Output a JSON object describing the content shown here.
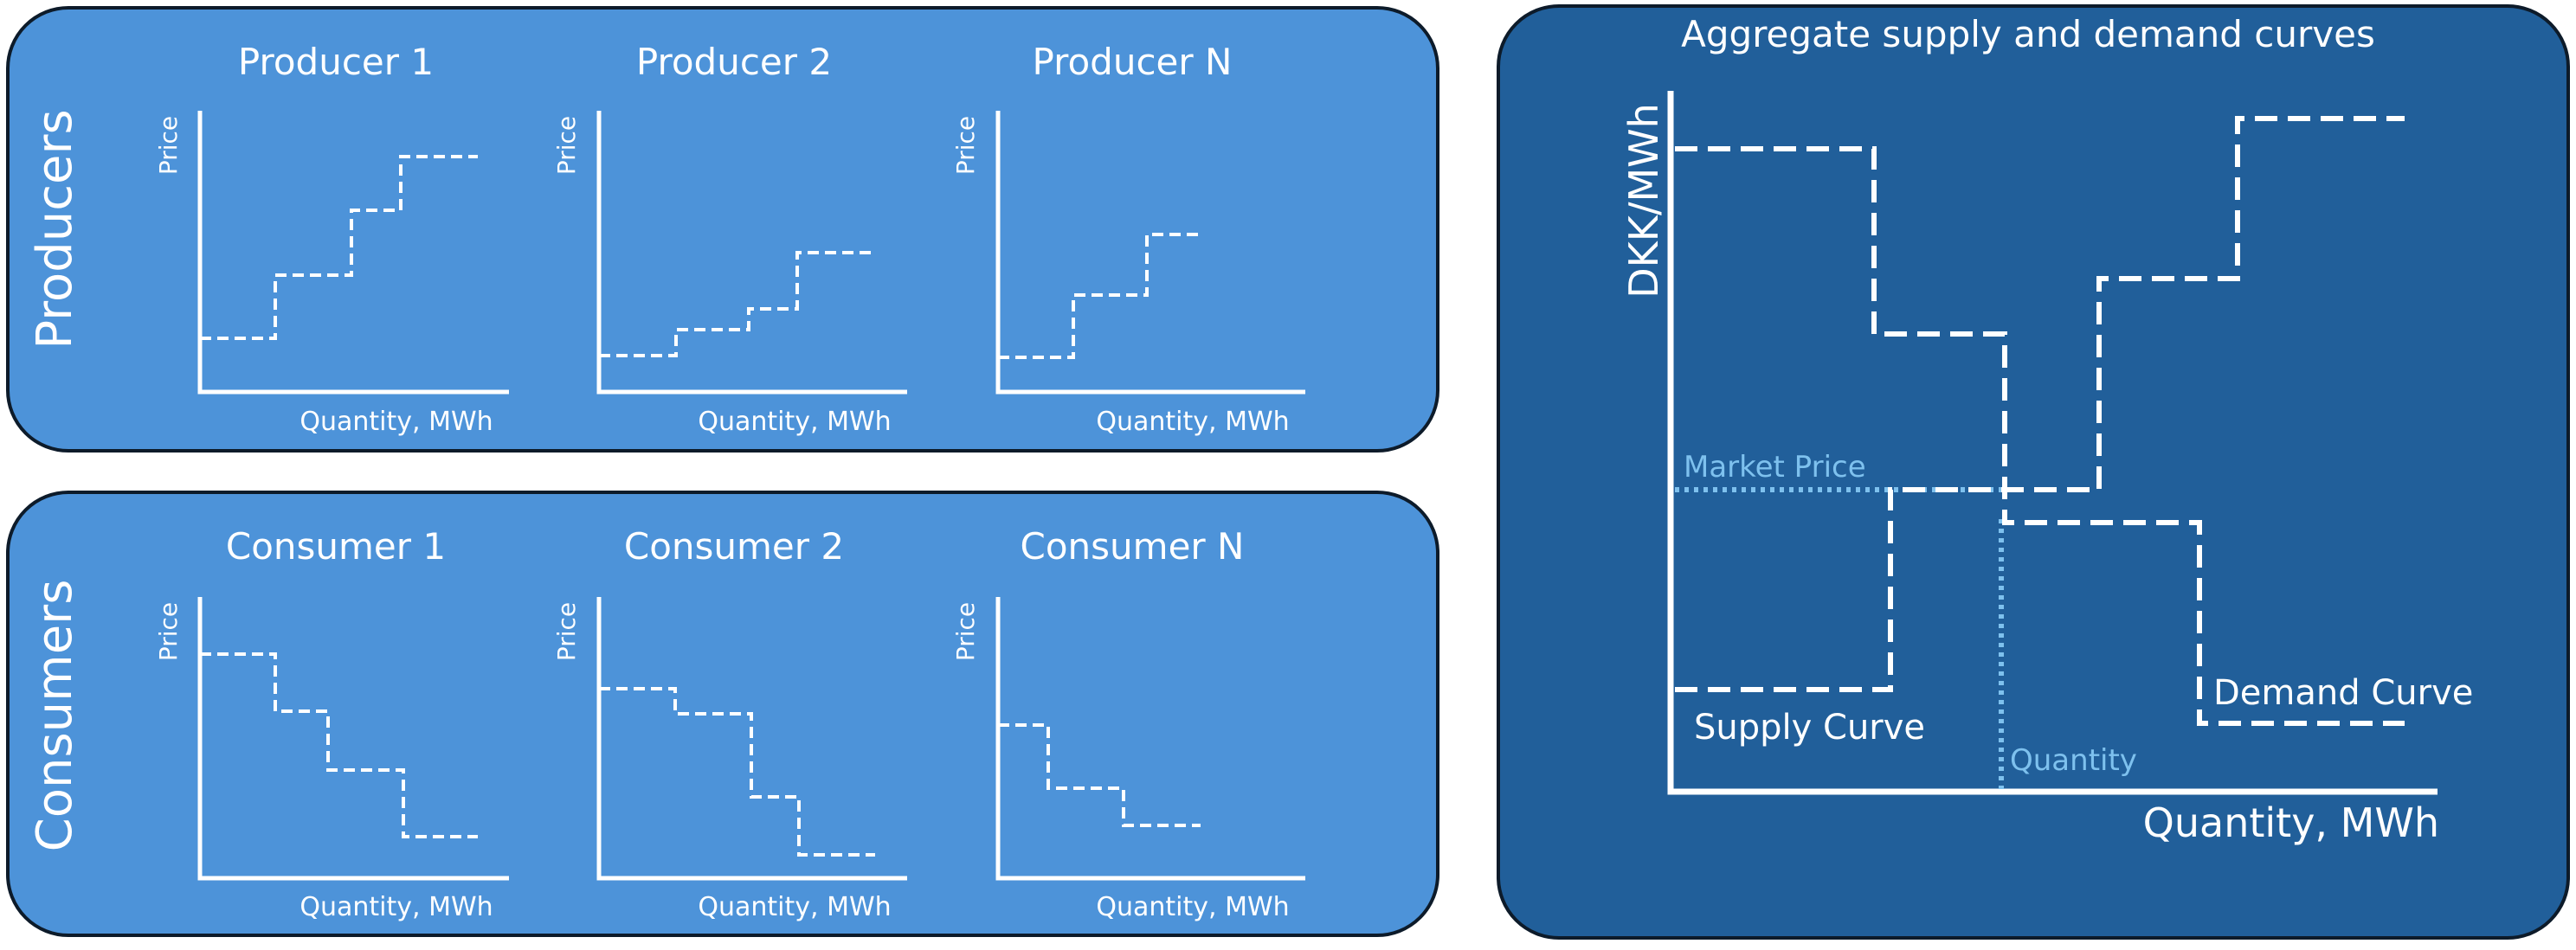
{
  "colors": {
    "panel_light": "#4d93d9",
    "panel_dark": "#215f9a",
    "border": "#0d1b2a",
    "line": "#ffffff",
    "market_line": "#7ec1ee"
  },
  "producers": {
    "group_label": "Producers",
    "charts": [
      {
        "title": "Producer 1",
        "ylabel": "Price",
        "xlabel": "Quantity, MWh"
      },
      {
        "title": "Producer 2",
        "ylabel": "Price",
        "xlabel": "Quantity, MWh"
      },
      {
        "title": "Producer N",
        "ylabel": "Price",
        "xlabel": "Quantity, MWh"
      }
    ]
  },
  "consumers": {
    "group_label": "Consumers",
    "charts": [
      {
        "title": "Consumer 1",
        "ylabel": "Price",
        "xlabel": "Quantity, MWh"
      },
      {
        "title": "Consumer 2",
        "ylabel": "Price",
        "xlabel": "Quantity, MWh"
      },
      {
        "title": "Consumer N",
        "ylabel": "Price",
        "xlabel": "Quantity, MWh"
      }
    ]
  },
  "aggregate": {
    "title": "Aggregate supply and demand curves",
    "ylabel": "DKK/MWh",
    "xlabel": "Quantity, MWh",
    "market_price_label": "Market Price",
    "quantity_label": "Quantity",
    "supply_label": "Supply Curve",
    "demand_label": "Demand Curve"
  }
}
